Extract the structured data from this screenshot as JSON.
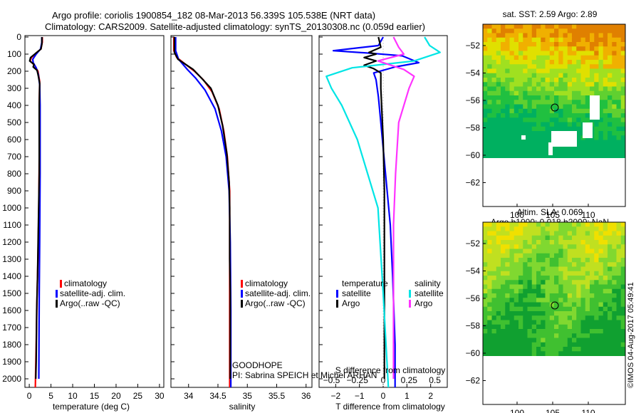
{
  "title": {
    "line1": "Argo profile: coriolis 1900854_182 08-Mar-2013 56.339S 105.538E (NRT data)",
    "line2": "Climatology: CARS2009. Satellite-adjusted climatology: synTS_20130308.nc (0.059d earlier)"
  },
  "depth_ticks": [
    "0",
    "100",
    "200",
    "300",
    "400",
    "500",
    "600",
    "700",
    "800",
    "900",
    "1000",
    "1100",
    "1200",
    "1300",
    "1400",
    "1500",
    "1600",
    "1700",
    "1800",
    "1900",
    "2000"
  ],
  "colors": {
    "clim": "#ff0000",
    "sat": "#0000ff",
    "argo": "#000000",
    "sat_s": "#00e5e5",
    "argo_s": "#ff33ff"
  },
  "chart_data": [
    {
      "type": "line",
      "name": "temperature",
      "xlabel": "temperature (deg C)",
      "ylabel": "depth",
      "xlim": [
        -1,
        31
      ],
      "ylim": [
        2050,
        0
      ],
      "xticks": [
        0,
        5,
        10,
        15,
        20,
        25,
        30
      ],
      "xtick_labels": [
        "0",
        "5",
        "10",
        "15",
        "20",
        "25",
        "30"
      ],
      "legend": {
        "items": [
          "climatology",
          "satellite-adj. clim.",
          "Argo(..raw -QC)"
        ],
        "placement": "lower-middle"
      },
      "series": [
        {
          "name": "climatology",
          "color": "#ff0000",
          "points": [
            [
              3,
              0
            ],
            [
              3,
              30
            ],
            [
              2.7,
              70
            ],
            [
              1.5,
              95
            ],
            [
              0.5,
              120
            ],
            [
              0.2,
              140
            ],
            [
              1.2,
              165
            ],
            [
              2,
              200
            ],
            [
              2.4,
              260
            ],
            [
              2.3,
              400
            ],
            [
              2.3,
              700
            ],
            [
              2.2,
              1000
            ],
            [
              2.0,
              1300
            ],
            [
              1.8,
              1500
            ],
            [
              1.6,
              1800
            ],
            [
              1.4,
              2050
            ]
          ]
        },
        {
          "name": "satellite-adj. clim.",
          "color": "#0000ff",
          "points": [
            [
              2.9,
              0
            ],
            [
              2.9,
              30
            ],
            [
              2.6,
              70
            ],
            [
              1.6,
              100
            ],
            [
              0.8,
              130
            ],
            [
              0.9,
              150
            ],
            [
              1.6,
              180
            ],
            [
              2.1,
              220
            ],
            [
              2.4,
              280
            ],
            [
              2.5,
              400
            ],
            [
              2.5,
              800
            ],
            [
              2.4,
              1200
            ],
            [
              2.3,
              1500
            ],
            [
              2.2,
              2000
            ]
          ]
        },
        {
          "name": "Argo(..raw -QC)",
          "color": "#000000",
          "points": [
            [
              2.9,
              0
            ],
            [
              2.9,
              40
            ],
            [
              2.7,
              70
            ],
            [
              1.5,
              95
            ],
            [
              0.3,
              120
            ],
            [
              0.1,
              140
            ],
            [
              1.1,
              160
            ],
            [
              0.9,
              175
            ],
            [
              1.8,
              195
            ],
            [
              2.1,
              230
            ],
            [
              2.4,
              270
            ],
            [
              2.3,
              400
            ],
            [
              2.3,
              800
            ],
            [
              2.1,
              1100
            ],
            [
              1.9,
              1400
            ],
            [
              1.7,
              1600
            ],
            [
              1.6,
              1900
            ],
            [
              1.5,
              2000
            ]
          ]
        }
      ]
    },
    {
      "type": "line",
      "name": "salinity",
      "xlabel": "salinity",
      "ylabel": "depth",
      "xlim": [
        33.7,
        36.1
      ],
      "ylim": [
        2050,
        0
      ],
      "xticks": [
        34,
        34.5,
        35,
        35.5,
        36
      ],
      "xtick_labels": [
        "34",
        "34.5",
        "35",
        "35.5",
        "36"
      ],
      "legend": {
        "items": [
          "climatology",
          "satellite-adj. clim.",
          "Argo(..raw -QC)"
        ],
        "placement": "lower-right"
      },
      "annotation": [
        "GOODHOPE",
        "PI: Sabrina SPEICH et Michel ARHAN"
      ],
      "series": [
        {
          "name": "climatology",
          "color": "#ff0000",
          "points": [
            [
              33.75,
              0
            ],
            [
              33.75,
              80
            ],
            [
              33.8,
              120
            ],
            [
              33.95,
              160
            ],
            [
              34.1,
              200
            ],
            [
              34.25,
              250
            ],
            [
              34.4,
              320
            ],
            [
              34.52,
              420
            ],
            [
              34.6,
              550
            ],
            [
              34.66,
              700
            ],
            [
              34.7,
              900
            ],
            [
              34.7,
              1200
            ],
            [
              34.7,
              1500
            ],
            [
              34.7,
              2050
            ]
          ]
        },
        {
          "name": "satellite-adj. clim.",
          "color": "#0000ff",
          "points": [
            [
              33.78,
              0
            ],
            [
              33.78,
              80
            ],
            [
              33.83,
              130
            ],
            [
              33.98,
              190
            ],
            [
              34.12,
              240
            ],
            [
              34.28,
              310
            ],
            [
              34.45,
              420
            ],
            [
              34.56,
              550
            ],
            [
              34.64,
              700
            ],
            [
              34.69,
              900
            ],
            [
              34.71,
              1200
            ],
            [
              34.72,
              1600
            ],
            [
              34.72,
              2050
            ]
          ]
        },
        {
          "name": "Argo(..raw -QC)",
          "color": "#000000",
          "points": [
            [
              33.76,
              0
            ],
            [
              33.76,
              90
            ],
            [
              33.82,
              130
            ],
            [
              33.95,
              160
            ],
            [
              34.08,
              190
            ],
            [
              34.22,
              240
            ],
            [
              34.38,
              300
            ],
            [
              34.5,
              400
            ],
            [
              34.58,
              520
            ],
            [
              34.65,
              680
            ],
            [
              34.69,
              850
            ],
            [
              34.7,
              1000
            ],
            [
              34.7,
              1300
            ],
            [
              34.71,
              1500
            ],
            [
              34.71,
              2000
            ]
          ]
        }
      ]
    },
    {
      "type": "line",
      "name": "differences",
      "xlabel": "T difference from climatology",
      "x2label": "S difference from climatology",
      "xlim": [
        -2.7,
        2.7
      ],
      "ylim": [
        2050,
        0
      ],
      "xticks": [
        -2,
        -1,
        0,
        1,
        2
      ],
      "xtick_labels": [
        "−2",
        "−1",
        "0",
        "1",
        "2"
      ],
      "x2ticks": [
        -0.5,
        -0.25,
        0,
        0.25,
        0.5
      ],
      "x2tick_labels": [
        "−0.5",
        "−0.25",
        "0",
        "0.25",
        "0.5"
      ],
      "legend": {
        "temperature_header": "temperature",
        "salinity_header": "salinity",
        "t_items": [
          "satellite",
          "Argo"
        ],
        "s_items": [
          "satellite",
          "Argo"
        ],
        "placement": "lower-middle"
      },
      "series": [
        {
          "name": "T satellite",
          "color": "#0000ff",
          "points": [
            [
              0,
              0
            ],
            [
              -0.2,
              50
            ],
            [
              -2.1,
              80
            ],
            [
              -0.5,
              95
            ],
            [
              0.8,
              110
            ],
            [
              1.5,
              150
            ],
            [
              0.5,
              175
            ],
            [
              -0.4,
              210
            ],
            [
              -0.3,
              250
            ],
            [
              -0.2,
              350
            ],
            [
              -0.1,
              500
            ],
            [
              0.1,
              800
            ],
            [
              0.3,
              1100
            ],
            [
              0.4,
              1400
            ],
            [
              0.5,
              1800
            ],
            [
              0.5,
              2050
            ]
          ]
        },
        {
          "name": "T Argo",
          "color": "#000000",
          "points": [
            [
              -0.2,
              0
            ],
            [
              -0.1,
              60
            ],
            [
              -0.6,
              90
            ],
            [
              -0.3,
              100
            ],
            [
              -0.8,
              120
            ],
            [
              -0.3,
              140
            ],
            [
              -0.8,
              165
            ],
            [
              -0.4,
              185
            ],
            [
              -0.1,
              210
            ],
            [
              -0.1,
              300
            ],
            [
              0,
              600
            ],
            [
              0.05,
              900
            ],
            [
              0.05,
              1300
            ],
            [
              0.05,
              1700
            ],
            [
              0.05,
              2000
            ]
          ]
        },
        {
          "name": "S satellite",
          "color": "#00e5e5",
          "points": [
            [
              0.4,
              0
            ],
            [
              0.45,
              50
            ],
            [
              0.55,
              90
            ],
            [
              0.3,
              140
            ],
            [
              -0.3,
              180
            ],
            [
              -0.55,
              230
            ],
            [
              -0.5,
              300
            ],
            [
              -0.4,
              400
            ],
            [
              -0.25,
              600
            ],
            [
              -0.15,
              800
            ],
            [
              -0.05,
              1000
            ],
            [
              0,
              1500
            ],
            [
              0.05,
              2050
            ]
          ]
        },
        {
          "name": "S Argo",
          "color": "#ff33ff",
          "points": [
            [
              0.1,
              0
            ],
            [
              0.15,
              60
            ],
            [
              0.2,
              100
            ],
            [
              -0.05,
              140
            ],
            [
              0.2,
              190
            ],
            [
              0.3,
              230
            ],
            [
              0.25,
              300
            ],
            [
              0.15,
              500
            ],
            [
              0.12,
              800
            ],
            [
              0.1,
              1100
            ],
            [
              0.1,
              1500
            ],
            [
              0.1,
              2000
            ]
          ]
        }
      ]
    }
  ],
  "maps": {
    "top": {
      "title": "sat. SST: 2.59  Argo: 2.89",
      "yticks": [
        "−52",
        "−54",
        "−56",
        "−58",
        "−60",
        "−62"
      ],
      "xticks": [
        "100",
        "105",
        "110"
      ]
    },
    "bottom": {
      "title1": "Altim. SLA: 0.069",
      "title2": "Argo h1000: 0.018  h2000: NaN",
      "yticks": [
        "−52",
        "−54",
        "−56",
        "−58",
        "−60",
        "−62"
      ],
      "xticks": [
        "100",
        "105",
        "110"
      ]
    },
    "watermark": "©IMOS 04-Aug-2017 05:49:41"
  }
}
